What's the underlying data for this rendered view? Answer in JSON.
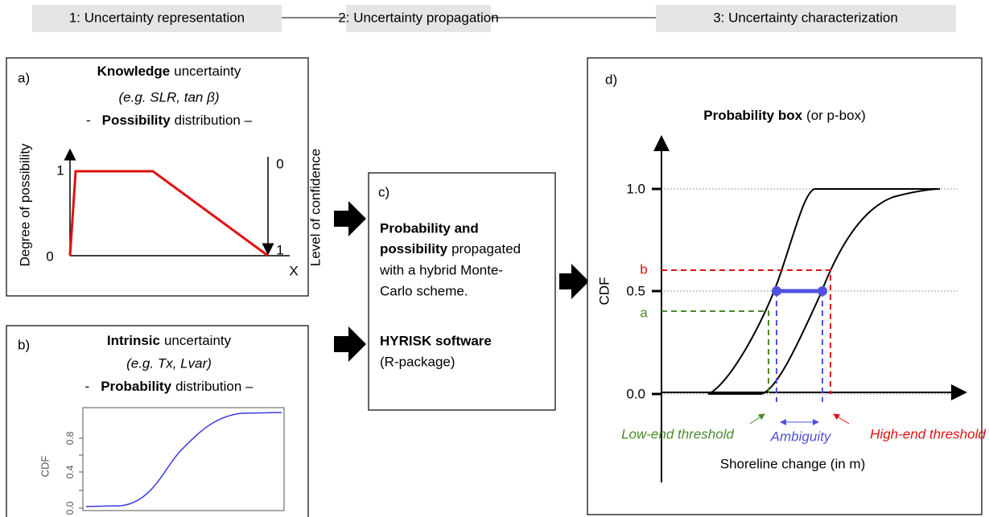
{
  "header": {
    "steps": [
      "1: Uncertainty representation",
      "2: Uncertainty propagation",
      "3: Uncertainty characterization"
    ]
  },
  "panel_a": {
    "label": "a)",
    "title_bold": "Knowledge",
    "title_rest": "uncertainty",
    "example": "(e.g. SLR, tan β)",
    "dist_prefix": "-",
    "dist_bold": "Possibility",
    "dist_rest": "distribution –",
    "y_label": "Degree of possibility",
    "y_tick_top": "1",
    "y_tick_bottom": "0",
    "x_label": "X",
    "right_label": "Level of confidence",
    "right_tick_top": "0",
    "right_tick_bottom": "1"
  },
  "panel_b": {
    "label": "b)",
    "title_bold": "Intrinsic",
    "title_rest": "uncertainty",
    "example": "(e.g. Tx, Lvar)",
    "dist_prefix": "-",
    "dist_bold": "Probability",
    "dist_rest": "distribution –",
    "plot_y_label": "CDF",
    "plot_ticks": [
      "0.0",
      "0.4",
      "0.8"
    ]
  },
  "panel_c": {
    "label": "c)",
    "lines": [
      {
        "bold": "Probability and"
      },
      {
        "bold": "possibility",
        "text": "propagated"
      },
      {
        "text": "with a hybrid Monte-"
      },
      {
        "text": "Carlo scheme."
      }
    ],
    "software_bold": "HYRISK software",
    "software_note": "(R-package)"
  },
  "panel_d": {
    "label": "d)",
    "title_bold": "Probability box",
    "title_rest": "(or p-box)",
    "y_ticks": [
      "1.0",
      "0.5",
      "0.0"
    ],
    "b": "b",
    "a": "a",
    "y_label": "CDF",
    "low": "Low-end threshold",
    "ambiguity": "Ambiguity",
    "high": "High-end threshold",
    "x_label": "Shoreline change (in m)"
  }
}
